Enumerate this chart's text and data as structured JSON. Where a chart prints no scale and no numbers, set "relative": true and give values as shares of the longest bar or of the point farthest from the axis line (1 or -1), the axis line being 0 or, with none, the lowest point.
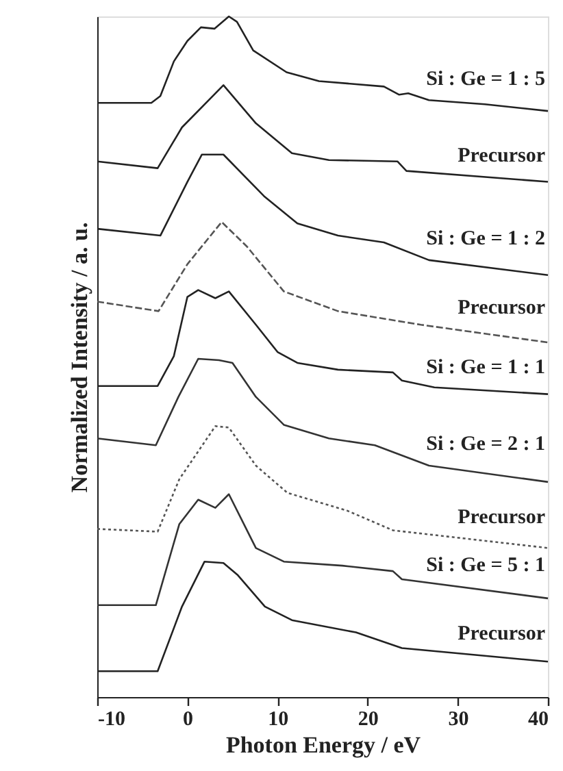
{
  "chart_data": {
    "type": "line",
    "relative": true,
    "xlabel": "Photon Energy / eV",
    "ylabel": "Normalized Intensity / a. u.",
    "xlim": [
      -10,
      40
    ],
    "xticks": [
      -10,
      0,
      10,
      20,
      30,
      40
    ],
    "grid": false,
    "marker": "none",
    "series": [
      {
        "name": "Si : Ge = 1 : 5",
        "color": "#222222",
        "line_style": "solid",
        "x": [
          -10,
          -4,
          -3,
          -1.5,
          0,
          1.5,
          3,
          4.6,
          5.5,
          7.3,
          11,
          14.6,
          21.8,
          23.5,
          24.5,
          26.8,
          33,
          40
        ],
        "values": [
          0.873,
          0.873,
          0.883,
          0.934,
          0.964,
          0.984,
          0.982,
          1.0,
          0.992,
          0.95,
          0.918,
          0.905,
          0.897,
          0.885,
          0.887,
          0.877,
          0.871,
          0.861
        ]
      },
      {
        "name": "Precursor",
        "color": "#222222",
        "line_style": "solid",
        "x": [
          -10,
          -3.3,
          -0.6,
          4.0,
          7.6,
          11.6,
          15.7,
          23.3,
          24.3,
          40
        ],
        "values": [
          0.787,
          0.777,
          0.837,
          0.899,
          0.843,
          0.799,
          0.789,
          0.787,
          0.773,
          0.757
        ]
      },
      {
        "name": "Si : Ge = 1 : 2",
        "color": "#222222",
        "line_style": "solid",
        "x": [
          -10,
          -3.0,
          0,
          1.6,
          4.0,
          8.5,
          12.2,
          16.7,
          21.8,
          26.8,
          40
        ],
        "values": [
          0.688,
          0.678,
          0.757,
          0.797,
          0.797,
          0.736,
          0.696,
          0.678,
          0.668,
          0.642,
          0.62
        ]
      },
      {
        "name": "Precursor",
        "color": "#555555",
        "line_style": "dashed",
        "x": [
          -10,
          -3.2,
          0,
          3.8,
          6.6,
          10.7,
          16.7,
          25.9,
          40
        ],
        "values": [
          0.581,
          0.567,
          0.636,
          0.698,
          0.662,
          0.596,
          0.567,
          0.547,
          0.521
        ]
      },
      {
        "name": "Si : Ge = 1 : 1",
        "color": "#222222",
        "line_style": "solid",
        "x": [
          -10,
          -3.3,
          -1.5,
          0,
          1.2,
          3.1,
          4.6,
          7.6,
          10,
          12.2,
          16.7,
          22.8,
          23.8,
          27.4,
          40
        ],
        "values": [
          0.457,
          0.457,
          0.501,
          0.588,
          0.598,
          0.586,
          0.596,
          0.547,
          0.507,
          0.491,
          0.481,
          0.477,
          0.465,
          0.455,
          0.445
        ]
      },
      {
        "name": "Si : Ge = 2 : 1",
        "color": "#333333",
        "line_style": "solid",
        "x": [
          -10,
          -3.5,
          -1,
          1.2,
          3.5,
          5.0,
          7.6,
          10.7,
          15.7,
          20.8,
          26.8,
          40
        ],
        "values": [
          0.38,
          0.37,
          0.441,
          0.497,
          0.495,
          0.491,
          0.441,
          0.4,
          0.38,
          0.37,
          0.34,
          0.316
        ]
      },
      {
        "name": "Precursor",
        "color": "#555555",
        "line_style": "dotted",
        "x": [
          -10,
          -3.3,
          -0.9,
          3.1,
          4.6,
          7.6,
          11.1,
          17.7,
          22.8,
          40
        ],
        "values": [
          0.247,
          0.243,
          0.32,
          0.398,
          0.396,
          0.34,
          0.3,
          0.274,
          0.245,
          0.219
        ]
      },
      {
        "name": "Si : Ge = 5 : 1",
        "color": "#333333",
        "line_style": "solid",
        "x": [
          -10,
          -3.5,
          -0.9,
          1.2,
          3.1,
          4.6,
          7.6,
          10.7,
          17.2,
          22.8,
          23.8,
          40
        ],
        "values": [
          0.135,
          0.135,
          0.254,
          0.29,
          0.278,
          0.298,
          0.219,
          0.199,
          0.193,
          0.185,
          0.173,
          0.145
        ]
      },
      {
        "name": "Precursor",
        "color": "#222222",
        "line_style": "solid",
        "x": [
          -10,
          -3.3,
          -0.6,
          1.9,
          4.0,
          5.6,
          8.6,
          11.6,
          18.7,
          23.8,
          40
        ],
        "values": [
          0.038,
          0.038,
          0.133,
          0.199,
          0.197,
          0.179,
          0.133,
          0.113,
          0.095,
          0.072,
          0.052
        ]
      }
    ]
  }
}
